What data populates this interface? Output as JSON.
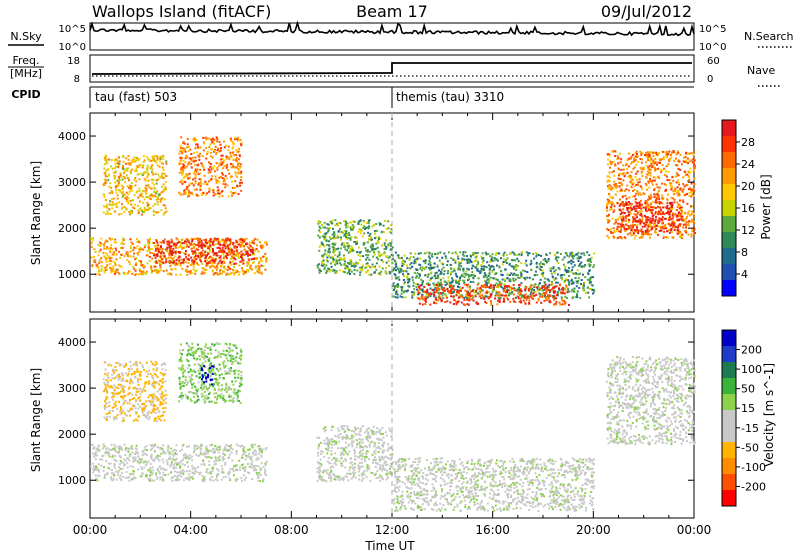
{
  "header": {
    "title": "Wallops Island (fitACF)",
    "beam": "Beam 17",
    "date": "09/Jul/2012"
  },
  "top_panels": {
    "nsky_label": "N.Sky",
    "nsky_ticks": [
      "10^5",
      "10^0"
    ],
    "nsearch_label": "N.Search",
    "nsearch_ticks": [
      "10^5",
      "10^0"
    ],
    "freq_label": "Freq.",
    "freq_unit": "[MHz]",
    "freq_ticks": [
      "18",
      "8"
    ],
    "nave_label": "Nave",
    "nave_ticks": [
      "60",
      "0"
    ],
    "cpid_label": "CPID",
    "cpid_segments": [
      {
        "name": "tau (fast) 503",
        "start_hour": 0,
        "end_hour": 12
      },
      {
        "name": "themis (tau) 3310",
        "start_hour": 12,
        "end_hour": 24
      }
    ]
  },
  "power_colorbar": {
    "label": "Power [dB]",
    "ticks": [
      "28",
      "24",
      "20",
      "16",
      "12",
      "8",
      "4"
    ],
    "colors": [
      "#e41a1c",
      "#ff3300",
      "#ff6a00",
      "#ff9a00",
      "#ffc800",
      "#c8d400",
      "#5aaa3c",
      "#2e8b57",
      "#1e6b8c",
      "#1f4fb0",
      "#0000ff"
    ]
  },
  "velocity_colorbar": {
    "label": "Velocity [m s^-1]",
    "ticks": [
      "200",
      "100",
      "50",
      "15",
      "-15",
      "-50",
      "-100",
      "-200"
    ],
    "colors": [
      "#0000c8",
      "#1e3cc8",
      "#1e7a50",
      "#3cb43c",
      "#8cd24a",
      "#c8c8c8",
      "#c8c8c8",
      "#ffb400",
      "#ff8c00",
      "#ff5000",
      "#ff0000"
    ]
  },
  "x_axis": {
    "label": "Time UT",
    "ticks": [
      "00:00",
      "04:00",
      "08:00",
      "12:00",
      "16:00",
      "20:00",
      "00:00"
    ]
  },
  "chart_data": [
    {
      "type": "heatmap",
      "panel": "power",
      "ylabel": "Slant Range [km]",
      "yticks": [
        1000,
        2000,
        3000,
        4000
      ],
      "ylim": [
        180,
        4500
      ],
      "xlim_hours": [
        0,
        24
      ],
      "zlabel": "Power [dB]",
      "zrange": [
        0,
        30
      ],
      "blobs": [
        {
          "t0": 0.0,
          "t1": 7.0,
          "r0": 1000,
          "r1": 1800,
          "value": 20
        },
        {
          "t0": 2.5,
          "t1": 6.5,
          "r0": 1250,
          "r1": 1800,
          "value": 28
        },
        {
          "t0": 0.5,
          "t1": 3.0,
          "r0": 2300,
          "r1": 3600,
          "value": 18
        },
        {
          "t0": 3.5,
          "t1": 6.0,
          "r0": 2700,
          "r1": 4000,
          "value": 22
        },
        {
          "t0": 9.0,
          "t1": 12.0,
          "r0": 1000,
          "r1": 2200,
          "value": 12
        },
        {
          "t0": 12.0,
          "t1": 20.0,
          "r0": 500,
          "r1": 1500,
          "value": 10
        },
        {
          "t0": 13.0,
          "t1": 19.0,
          "r0": 350,
          "r1": 800,
          "value": 26
        },
        {
          "t0": 20.5,
          "t1": 24.0,
          "r0": 1800,
          "r1": 3700,
          "value": 22
        },
        {
          "t0": 21.0,
          "t1": 23.5,
          "r0": 1900,
          "r1": 2600,
          "value": 28
        }
      ]
    },
    {
      "type": "heatmap",
      "panel": "velocity",
      "ylabel": "Slant Range [km]",
      "yticks": [
        1000,
        2000,
        3000,
        4000
      ],
      "ylim": [
        180,
        4500
      ],
      "xlim_hours": [
        0,
        24
      ],
      "zlabel": "Velocity [m s^-1]",
      "zrange": [
        -200,
        200
      ],
      "blobs": [
        {
          "t0": 0.0,
          "t1": 7.0,
          "r0": 1000,
          "r1": 1800,
          "value": 0
        },
        {
          "t0": 0.5,
          "t1": 3.0,
          "r0": 2300,
          "r1": 3600,
          "value": -60
        },
        {
          "t0": 3.5,
          "t1": 6.0,
          "r0": 2700,
          "r1": 4000,
          "value": 40
        },
        {
          "t0": 4.4,
          "t1": 4.9,
          "r0": 3100,
          "r1": 3500,
          "value": 200
        },
        {
          "t0": 9.0,
          "t1": 12.0,
          "r0": 1000,
          "r1": 2200,
          "value": 0
        },
        {
          "t0": 12.0,
          "t1": 20.0,
          "r0": 350,
          "r1": 1500,
          "value": 0
        },
        {
          "t0": 20.5,
          "t1": 24.0,
          "r0": 1800,
          "r1": 3700,
          "value": 0
        }
      ]
    }
  ]
}
